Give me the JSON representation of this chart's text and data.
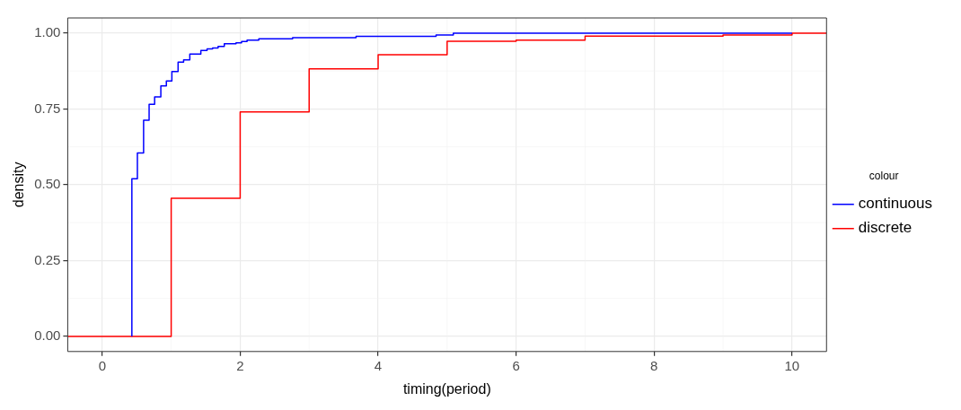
{
  "chart_data": {
    "type": "step",
    "xlabel": "timing(period)",
    "ylabel": "density",
    "legend_title": "colour",
    "legend": "right",
    "xlim": [
      -0.5,
      10.5
    ],
    "xticks": [
      0,
      2,
      4,
      6,
      8,
      10
    ],
    "ylim": [
      -0.05,
      1.05
    ],
    "yticks": [
      {
        "value": 0,
        "label": "0.00"
      },
      {
        "value": 0.25,
        "label": "0.25"
      },
      {
        "value": 0.5,
        "label": "0.50"
      },
      {
        "value": 0.75,
        "label": "0.75"
      },
      {
        "value": 1,
        "label": "1.00"
      }
    ],
    "grid": true,
    "series": [
      {
        "name": "continuous",
        "color": "#0000ff",
        "x": [
          0.43,
          0.43,
          0.51,
          0.6,
          0.68,
          0.76,
          0.85,
          0.93,
          1.01,
          1.1,
          1.18,
          1.27,
          1.43,
          1.52,
          1.6,
          1.68,
          1.77,
          1.94,
          2.02,
          2.1,
          2.27,
          2.76,
          3.68,
          4.84,
          5.09,
          10
        ],
        "values": [
          0,
          0.52,
          0.605,
          0.713,
          0.765,
          0.79,
          0.826,
          0.842,
          0.873,
          0.904,
          0.912,
          0.931,
          0.943,
          0.948,
          0.951,
          0.956,
          0.965,
          0.968,
          0.972,
          0.977,
          0.981,
          0.985,
          0.989,
          0.994,
          1,
          1
        ]
      },
      {
        "name": "discrete",
        "color": "#ff0000",
        "x": [
          -0.5,
          1,
          2,
          3,
          4,
          5,
          6,
          7,
          9,
          10,
          10.5
        ],
        "values": [
          0,
          0.455,
          0.74,
          0.882,
          0.929,
          0.973,
          0.977,
          0.99,
          0.994,
          1,
          1
        ]
      }
    ]
  }
}
